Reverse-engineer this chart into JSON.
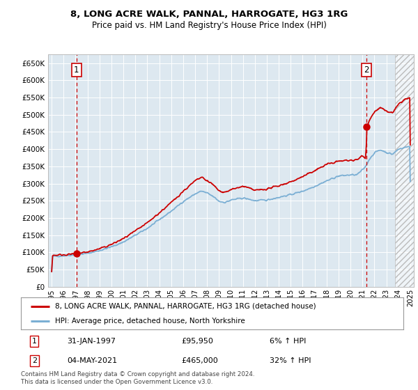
{
  "title": "8, LONG ACRE WALK, PANNAL, HARROGATE, HG3 1RG",
  "subtitle": "Price paid vs. HM Land Registry's House Price Index (HPI)",
  "legend_line1": "8, LONG ACRE WALK, PANNAL, HARROGATE, HG3 1RG (detached house)",
  "legend_line2": "HPI: Average price, detached house, North Yorkshire",
  "footnote": "Contains HM Land Registry data © Crown copyright and database right 2024.\nThis data is licensed under the Open Government Licence v3.0.",
  "annotation1_date": "31-JAN-1997",
  "annotation1_price": "£95,950",
  "annotation1_hpi": "6% ↑ HPI",
  "annotation1_year": 1997.08,
  "annotation1_value": 95950,
  "annotation2_date": "04-MAY-2021",
  "annotation2_price": "£465,000",
  "annotation2_hpi": "32% ↑ HPI",
  "annotation2_year": 2021.34,
  "annotation2_value": 465000,
  "hpi_color": "#7bafd4",
  "price_color": "#cc0000",
  "plot_bg_color": "#dde8f0",
  "grid_color": "#ffffff",
  "ylim": [
    0,
    675000
  ],
  "yticks": [
    0,
    50000,
    100000,
    150000,
    200000,
    250000,
    300000,
    350000,
    400000,
    450000,
    500000,
    550000,
    600000,
    650000
  ],
  "xlim_start": 1994.7,
  "xlim_end": 2025.3,
  "xtick_years": [
    1995,
    1996,
    1997,
    1998,
    1999,
    2000,
    2001,
    2002,
    2003,
    2004,
    2005,
    2006,
    2007,
    2008,
    2009,
    2010,
    2011,
    2012,
    2013,
    2014,
    2015,
    2016,
    2017,
    2018,
    2019,
    2020,
    2021,
    2022,
    2023,
    2024,
    2025
  ],
  "hatch_start": 2023.7,
  "hatch_end": 2025.3
}
